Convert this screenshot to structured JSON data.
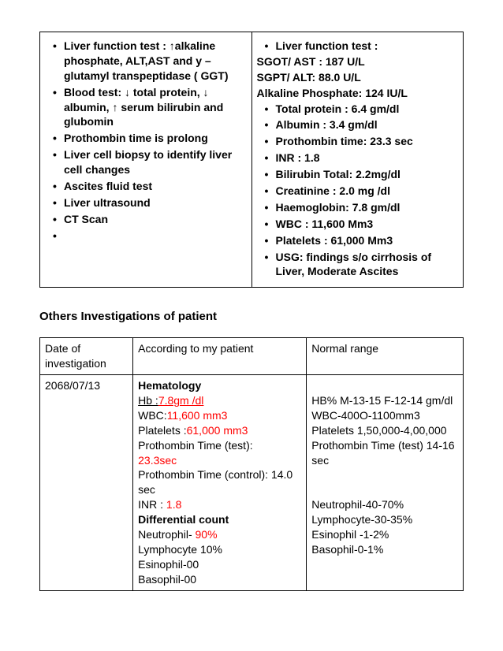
{
  "topLeft": [
    "Liver function test : ↑alkaline phosphate, ALT,AST and y – glutamyl transpeptidase ( GGT)",
    "Blood test: ↓ total protein, ↓ albumin, ↑ serum bilirubin and glubomin",
    "Prothombin time is prolong",
    "Liver cell biopsy to identify liver cell changes",
    "Ascites fluid test",
    "Liver ultrasound",
    "CT Scan",
    ""
  ],
  "topRight": {
    "headBullet": "Liver function test :",
    "headLines": [
      "SGOT/ AST   :        187 U/L",
      "SGPT/ ALT:         88.0  U/L",
      "Alkaline Phosphate:  124 IU/L"
    ],
    "items": [
      "Total protein : 6.4 gm/dl",
      "Albumin :  3.4 gm/dl",
      "Prothombin time:  23.3 sec",
      "INR  :      1.8",
      "Bilirubin Total:  2.2mg/dl",
      "Creatinine :  2.0 mg /dl",
      "Haemoglobin: 7.8 gm/dl",
      "WBC :  11,600 Mm3",
      "Platelets : 61,000 Mm3",
      "USG: findings s/o cirrhosis of Liver, Moderate Ascites"
    ]
  },
  "sectionTitle": "Others Investigations of patient",
  "invHeaders": {
    "c1": "Date of investigation",
    "c2": "According to my patient",
    "c3": "Normal range"
  },
  "invRow": {
    "date": "2068/07/13",
    "patient": {
      "hemaTitle": "Hematology",
      "hbLabel": " Hb :",
      "hbValue": "7.8gm /dl",
      "wbcLabel": "WBC:",
      "wbcValue": "11,600 mm3",
      "platLabel": "Platelets :",
      "platValue": "61,000 mm3",
      "ptTestLabel": "Prothombin Time (test): ",
      "ptTestValue": "23.3sec",
      "ptCtrl": "Prothombin Time (control): 14.0 sec",
      "inrLabel": "INR : ",
      "inrValue": "1.8",
      "diffTitle": "Differential count",
      "neutLabel": " Neutrophil- ",
      "neutValue": "90%",
      "lymph": "Lymphocyte 10%",
      "esin": "Esinophil-00",
      "baso": "Basophil-00"
    },
    "normal": {
      "blank": "",
      "hb": "HB%   M-13-15 F-12-14 gm/dl",
      "wbc": "WBC-400O-1100mm3",
      "plat": " Platelets 1,50,000-4,00,000",
      "pt": "  Prothombin Time (test) 14-16 sec",
      "gap": "",
      "neut": "Neutrophil-40-70%",
      "lymph": "Lymphocyte-30-35%",
      "esin": "Esinophil -1-2%",
      "baso": "Basophil-0-1%"
    }
  }
}
